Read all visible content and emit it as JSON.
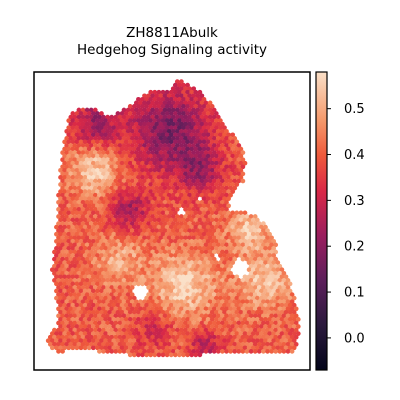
{
  "chart_data": {
    "type": "heatmap",
    "subtype": "spatial-spot-map",
    "title_line1": "ZH8811Abulk",
    "title_line2": "Hedgehog Signaling activity",
    "xlabel": "",
    "ylabel": "",
    "colormap": "rocket",
    "colorbar": {
      "range": [
        -0.07,
        0.58
      ],
      "ticks": [
        0.0,
        0.1,
        0.2,
        0.3,
        0.4,
        0.5
      ],
      "tick_labels": [
        "0.0",
        "0.1",
        "0.2",
        "0.3",
        "0.4",
        "0.5"
      ]
    },
    "colors": {
      "low": "#03051a",
      "mid_low": "#701f57",
      "mid": "#d92847",
      "mid_high": "#f47a54",
      "high": "#fae0c8"
    },
    "grid": false,
    "value_range_observed": [
      -0.05,
      0.57
    ],
    "regions": [
      {
        "name": "upper-center dark band",
        "mean_value": 0.15
      },
      {
        "name": "right-edge light strip",
        "mean_value": 0.52
      },
      {
        "name": "lower-center light core",
        "mean_value": 0.55
      },
      {
        "name": "left tissue body",
        "mean_value": 0.38
      },
      {
        "name": "bottom-left protrusion",
        "mean_value": 0.42
      }
    ]
  }
}
